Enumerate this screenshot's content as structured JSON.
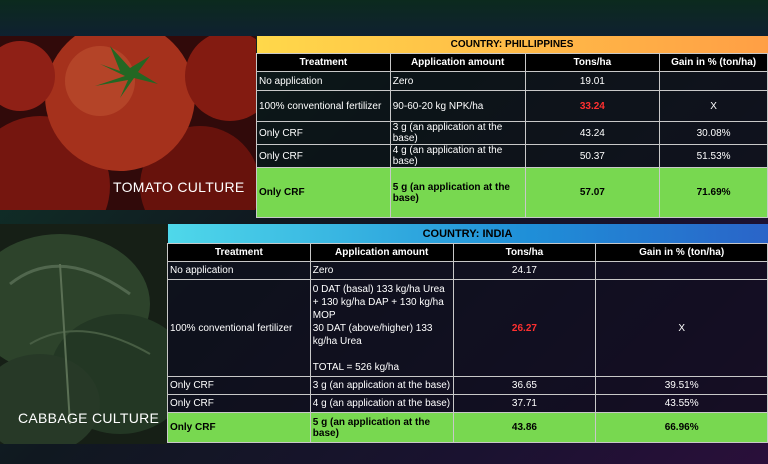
{
  "tomato": {
    "caption": "TOMATO CULTURE",
    "country": "COUNTRY: PHILLIPPINES",
    "headers": [
      "Treatment",
      "Application amount",
      "Tons/ha",
      "Gain in % (ton/ha)"
    ],
    "rows": [
      {
        "treatment": "No application",
        "amount": "Zero",
        "tons": "19.01",
        "gain": ""
      },
      {
        "treatment": "100% conventional fertilizer",
        "amount": "90-60-20 kg NPK/ha",
        "tons": "33.24",
        "gain": "X"
      },
      {
        "treatment": "Only CRF",
        "amount": "3 g (an application at the base)",
        "tons": "43.24",
        "gain": "30.08%"
      },
      {
        "treatment": "Only CRF",
        "amount": "4 g (an application at the base)",
        "tons": "50.37",
        "gain": "51.53%"
      },
      {
        "treatment": "Only CRF",
        "amount": "5 g (an application at the base)",
        "tons": "57.07",
        "gain": "71.69%"
      }
    ]
  },
  "cabbage": {
    "caption": "CABBAGE CULTURE",
    "country": "COUNTRY: INDIA",
    "headers": [
      "Treatment",
      "Application amount",
      "Tons/ha",
      "Gain in % (ton/ha)"
    ],
    "rows": [
      {
        "treatment": "No application",
        "amount": "Zero",
        "tons": "24.17",
        "gain": ""
      },
      {
        "treatment": "100% conventional fertilizer",
        "amount": "0 DAT (basal) 133 kg/ha Urea\n + 130 kg/ha DAP  + 130 kg/ha MOP\n30 DAT (above/higher) 133 kg/ha Urea\n\nTOTAL = 526 kg/ha",
        "tons": "26.27",
        "gain": "X"
      },
      {
        "treatment": "Only CRF",
        "amount": "3 g (an application at the base)",
        "tons": "36.65",
        "gain": "39.51%"
      },
      {
        "treatment": "Only CRF",
        "amount": "4 g (an application at the base)",
        "tons": "37.71",
        "gain": "43.55%"
      },
      {
        "treatment": "Only CRF",
        "amount": "5 g (an application at the base)",
        "tons": "43.86",
        "gain": "66.96%"
      }
    ]
  }
}
